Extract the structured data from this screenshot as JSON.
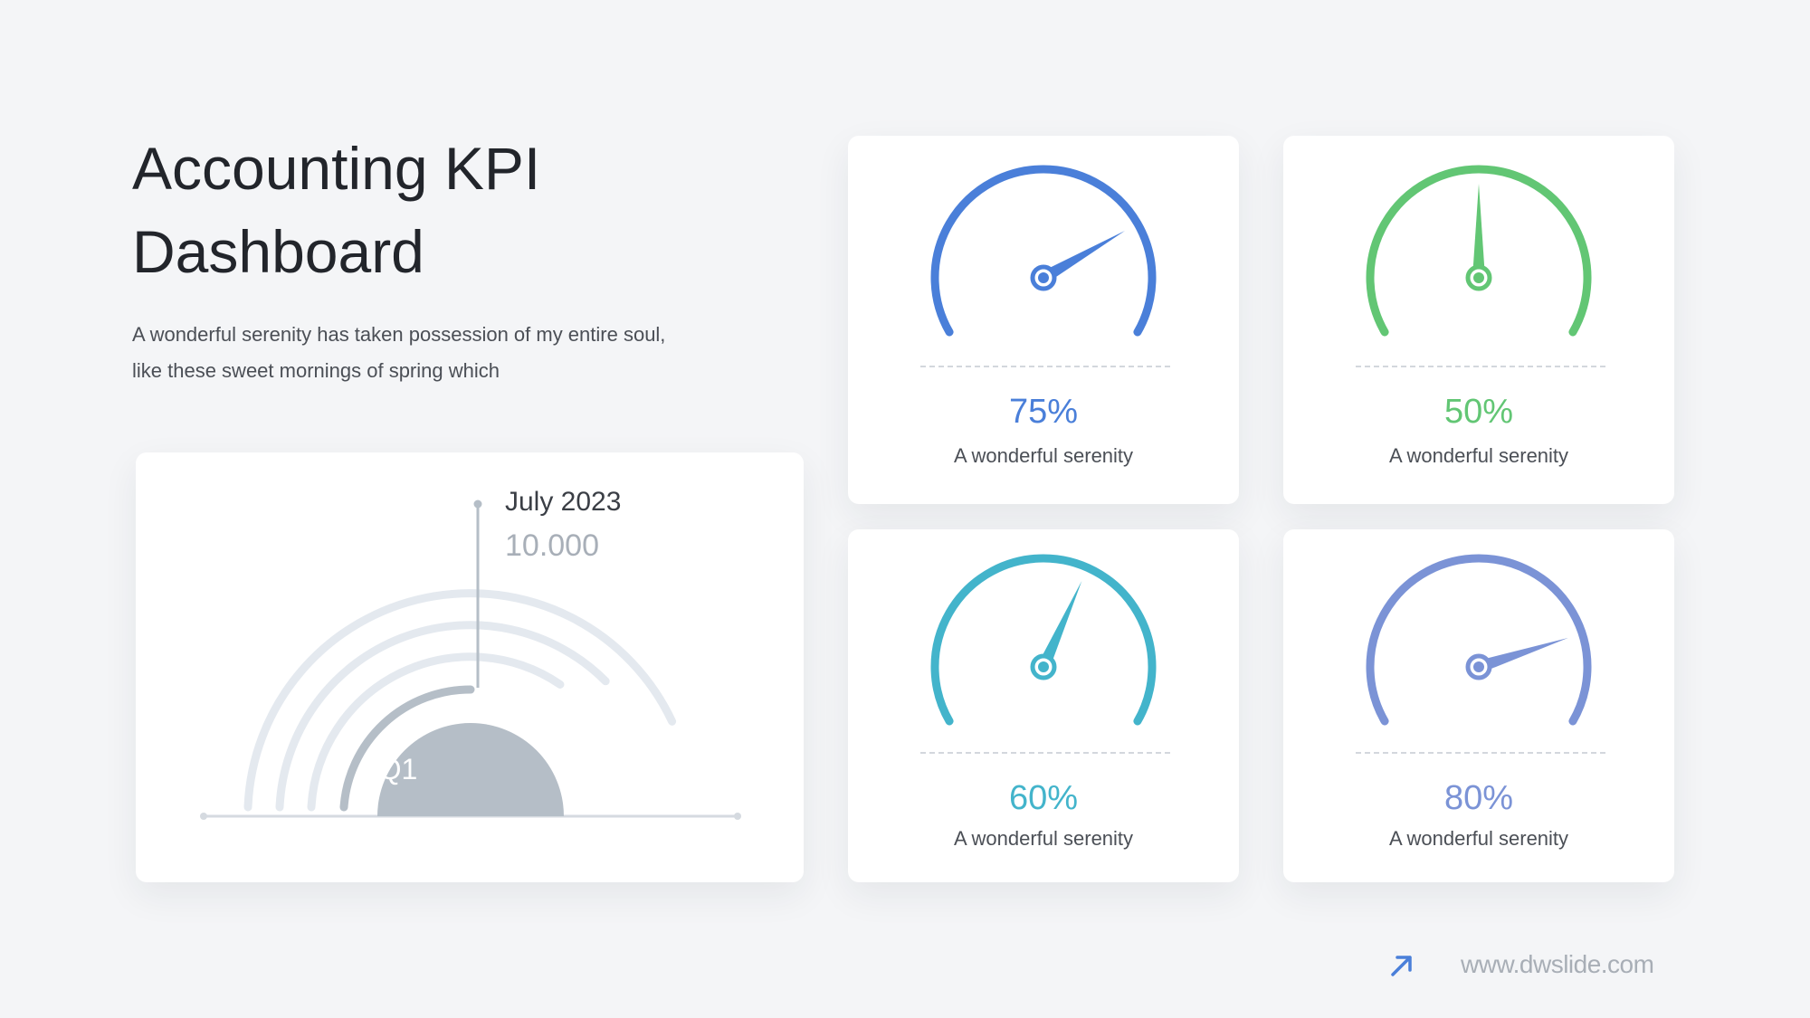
{
  "header": {
    "title_line1": "Accounting KPI",
    "title_line2": "Dashboard",
    "subtitle_line1": "A wonderful serenity has taken possession of my entire soul,",
    "subtitle_line2": "like these sweet mornings of spring which"
  },
  "chart_data": [
    {
      "type": "radial-bar",
      "center_label": "Q1",
      "callout": {
        "date": "July 2023",
        "value": "10.000"
      },
      "rings": [
        {
          "fraction": 0.5,
          "highlighted": true
        },
        {
          "fraction": 0.69,
          "highlighted": false
        },
        {
          "fraction": 0.75,
          "highlighted": false
        },
        {
          "fraction": 0.86,
          "highlighted": false
        }
      ],
      "colors": {
        "highlight": "#b5bec7",
        "track": "#e4e9ef",
        "axis": "#d5dae0"
      }
    },
    {
      "type": "gauge",
      "value": 75,
      "label": "75%",
      "description": "A wonderful serenity",
      "color": "#4a7fd9"
    },
    {
      "type": "gauge",
      "value": 50,
      "label": "50%",
      "description": "A wonderful serenity",
      "color": "#62c674"
    },
    {
      "type": "gauge",
      "value": 60,
      "label": "60%",
      "description": "A wonderful serenity",
      "color": "#43b4cb"
    },
    {
      "type": "gauge",
      "value": 80,
      "label": "80%",
      "description": "A wonderful serenity",
      "color": "#7b93d6"
    }
  ],
  "footer": {
    "url": "www.dwslide.com",
    "icon": "arrow-up-right-icon",
    "icon_color": "#4a7fd9"
  }
}
